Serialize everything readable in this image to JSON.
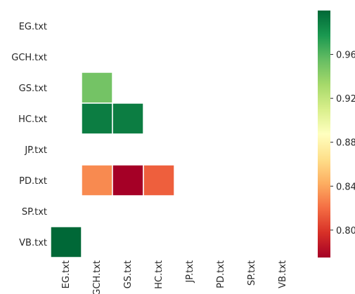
{
  "chart_data": {
    "type": "heatmap",
    "title": "",
    "xlabel": "",
    "ylabel": "",
    "row_labels": [
      "EG.txt",
      "GCH.txt",
      "GS.txt",
      "HC.txt",
      "JP.txt",
      "PD.txt",
      "SP.txt",
      "VB.txt"
    ],
    "col_labels": [
      "EG.txt",
      "GCH.txt",
      "GS.txt",
      "HC.txt",
      "JP.txt",
      "PD.txt",
      "SP.txt",
      "VB.txt"
    ],
    "mask": "upper triangle and diagonal hidden",
    "cells": [
      {
        "row": "GS.txt",
        "col": "GCH.txt",
        "value": 0.95
      },
      {
        "row": "HC.txt",
        "col": "GCH.txt",
        "value": 0.99
      },
      {
        "row": "HC.txt",
        "col": "GS.txt",
        "value": 0.99
      },
      {
        "row": "PD.txt",
        "col": "GCH.txt",
        "value": 0.83
      },
      {
        "row": "PD.txt",
        "col": "GS.txt",
        "value": 0.775
      },
      {
        "row": "PD.txt",
        "col": "HC.txt",
        "value": 0.815
      },
      {
        "row": "VB.txt",
        "col": "EG.txt",
        "value": 1.0
      }
    ],
    "colorbar": {
      "colormap": "RdYlGn",
      "vmin": 0.775,
      "vmax": 1.0,
      "ticks": [
        0.8,
        0.84,
        0.88,
        0.92,
        0.96
      ],
      "tick_labels": [
        "0.80",
        "0.84",
        "0.88",
        "0.92",
        "0.96"
      ]
    }
  }
}
